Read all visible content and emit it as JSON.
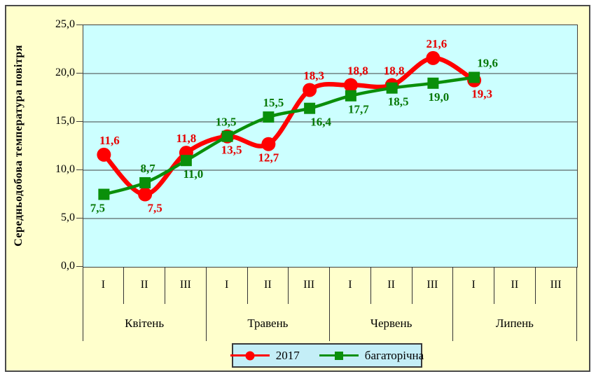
{
  "frame": {
    "bg": "#FFFFCC",
    "border_color": "#4A4A4A"
  },
  "plot": {
    "bg": "#CCFFFF",
    "grid_color": "#404040",
    "legend_bg": "#C4EEF7"
  },
  "chart_data": {
    "type": "line",
    "smoothed": true,
    "title": "",
    "ylabel": "Середньодобова температура повітря",
    "xlabel": "",
    "ylim": [
      0,
      25
    ],
    "ytick_step": 5,
    "ytick_labels": [
      "0,0",
      "5,0",
      "10,0",
      "15,0",
      "20,0",
      "25,0"
    ],
    "grid": true,
    "legend_position": "bottom",
    "x_decade_labels": [
      "I",
      "II",
      "III",
      "I",
      "II",
      "III",
      "I",
      "II",
      "III",
      "I",
      "II",
      "III"
    ],
    "x_month_labels": [
      "Квітень",
      "Травень",
      "Червень",
      "Липень"
    ],
    "series": [
      {
        "name": "2017",
        "color": "#FF0000",
        "label_color": "#E60000",
        "marker": "circle",
        "values": [
          11.6,
          7.5,
          11.8,
          13.5,
          12.7,
          18.3,
          18.8,
          18.8,
          21.6,
          19.3
        ],
        "point_labels": [
          "11,6",
          "7,5",
          "11,8",
          "13,5",
          "12,7",
          "18,3",
          "18,8",
          "18,8",
          "21,6",
          "19,3"
        ],
        "label_side": [
          "above",
          "below",
          "above",
          "below",
          "below",
          "above",
          "above",
          "above",
          "above",
          "below"
        ],
        "label_dx": [
          8,
          14,
          0,
          6,
          0,
          6,
          10,
          3,
          5,
          11
        ]
      },
      {
        "name": "багаторічна",
        "color": "#0A8F0A",
        "label_color": "#067806",
        "marker": "square",
        "values": [
          7.5,
          8.7,
          11.0,
          13.5,
          15.5,
          16.4,
          17.7,
          18.5,
          19.0,
          19.6
        ],
        "point_labels": [
          "7,5",
          "8,7",
          "11,0",
          "13,5",
          "15,5",
          "16,4",
          "17,7",
          "18,5",
          "19,0",
          "19,6"
        ],
        "label_side": [
          "below",
          "above",
          "below",
          "above",
          "above",
          "below",
          "below",
          "below",
          "below",
          "above"
        ],
        "label_dx": [
          -9,
          4,
          10,
          -2,
          7,
          16,
          11,
          9,
          8,
          19
        ]
      }
    ]
  }
}
